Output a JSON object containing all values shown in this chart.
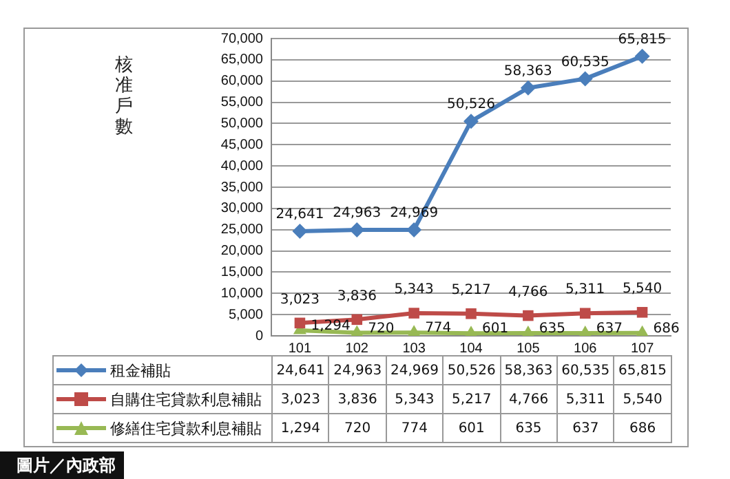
{
  "chart_data": {
    "type": "line",
    "ylabel": "核准戶數",
    "categories": [
      "101",
      "102",
      "103",
      "104",
      "105",
      "106",
      "107"
    ],
    "series": [
      {
        "name": "租金補貼",
        "color": "#4a7ebb",
        "marker": "diamond",
        "values": [
          24641,
          24963,
          24969,
          50526,
          58363,
          60535,
          65815
        ],
        "value_labels": [
          "24,641",
          "24,963",
          "24,969",
          "50,526",
          "58,363",
          "60,535",
          "65,815"
        ]
      },
      {
        "name": "自購住宅貸款利息補貼",
        "color": "#be4b48",
        "marker": "square",
        "values": [
          3023,
          3836,
          5343,
          5217,
          4766,
          5311,
          5540
        ],
        "value_labels": [
          "3,023",
          "3,836",
          "5,343",
          "5,217",
          "4,766",
          "5,311",
          "5,540"
        ]
      },
      {
        "name": "修繕住宅貸款利息補貼",
        "color": "#98b954",
        "marker": "triangle",
        "values": [
          1294,
          720,
          774,
          601,
          635,
          637,
          686
        ],
        "value_labels": [
          "1,294",
          "720",
          "774",
          "601",
          "635",
          "637",
          "686"
        ]
      }
    ],
    "ylim": [
      0,
      70000
    ],
    "yticks": [
      0,
      {
        "value": 5000,
        "label": "5,000"
      },
      {
        "value": 10000,
        "label": "10,000"
      },
      {
        "value": 15000,
        "label": "15,000"
      },
      {
        "value": 20000,
        "label": "20,000"
      },
      {
        "value": 25000,
        "label": "25,000"
      },
      {
        "value": 30000,
        "label": "30,000"
      },
      {
        "value": 35000,
        "label": "35,000"
      },
      {
        "value": 40000,
        "label": "40,000"
      },
      {
        "value": 45000,
        "label": "45,000"
      },
      {
        "value": 50000,
        "label": "50,000"
      },
      {
        "value": 55000,
        "label": "55,000"
      },
      {
        "value": 60000,
        "label": "60,000"
      },
      {
        "value": 65000,
        "label": "65,000"
      },
      {
        "value": 70000,
        "label": "70,000"
      }
    ],
    "grid": "y",
    "legend": "bottom",
    "line_style": "solid",
    "annotations": [
      "圖片／內政部"
    ]
  }
}
